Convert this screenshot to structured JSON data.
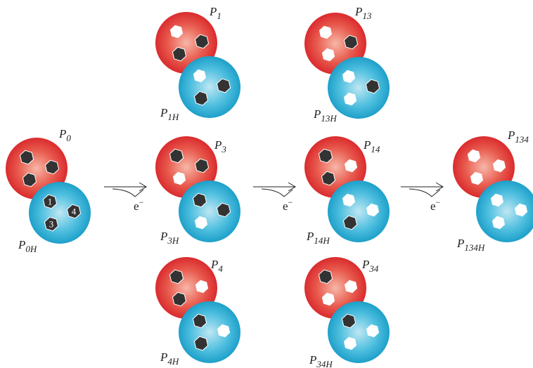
{
  "nodes": [
    {
      "label": {
        "main": "P",
        "sub": "0"
      },
      "h_label": {
        "main": "P",
        "sub": "0H"
      },
      "sites": [
        "1",
        "4",
        "3"
      ]
    },
    {
      "label": {
        "main": "P",
        "sub": "1"
      },
      "h_label": {
        "main": "P",
        "sub": "1H"
      }
    },
    {
      "label": {
        "main": "P",
        "sub": "13"
      },
      "h_label": {
        "main": "P",
        "sub": "13H"
      }
    },
    {
      "label": {
        "main": "P",
        "sub": "3"
      },
      "h_label": {
        "main": "P",
        "sub": "3H"
      }
    },
    {
      "label": {
        "main": "P",
        "sub": "14"
      },
      "h_label": {
        "main": "P",
        "sub": "14H"
      }
    },
    {
      "label": {
        "main": "P",
        "sub": "134"
      },
      "h_label": {
        "main": "P",
        "sub": "134H"
      }
    },
    {
      "label": {
        "main": "P",
        "sub": "4"
      },
      "h_label": {
        "main": "P",
        "sub": "4H"
      }
    },
    {
      "label": {
        "main": "P",
        "sub": "34"
      },
      "h_label": {
        "main": "P",
        "sub": "34H"
      }
    }
  ],
  "arrows": [
    {
      "label": {
        "main": "e",
        "sup": "−"
      }
    },
    {
      "label": {
        "main": "e",
        "sup": "−"
      }
    },
    {
      "label": {
        "main": "e",
        "sup": "−"
      }
    }
  ]
}
